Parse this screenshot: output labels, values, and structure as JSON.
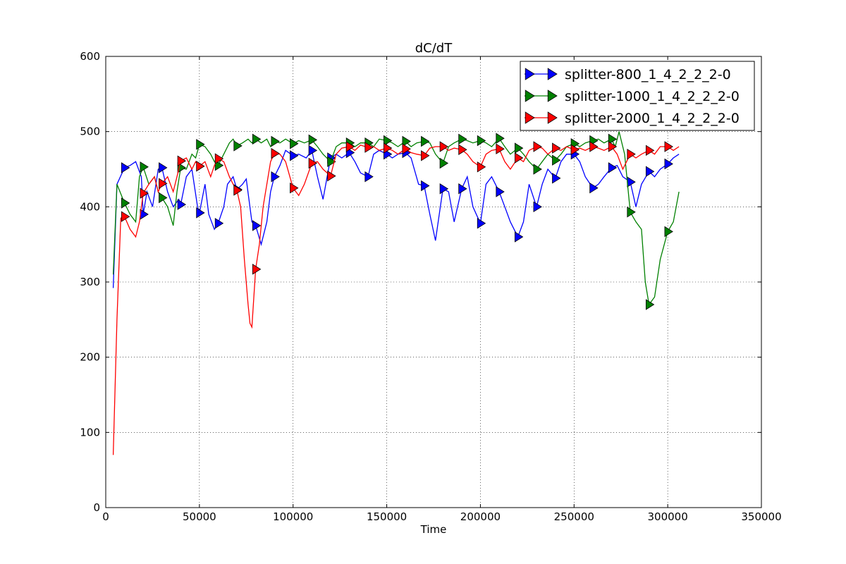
{
  "chart_data": {
    "type": "line",
    "title": "dC/dT",
    "xlabel": "Time",
    "ylabel": "",
    "xlim": [
      0,
      350000
    ],
    "ylim": [
      0,
      600
    ],
    "x_ticks": [
      "0",
      "50000",
      "100000",
      "150000",
      "200000",
      "250000",
      "300000",
      "350000"
    ],
    "y_ticks": [
      "0",
      "100",
      "200",
      "300",
      "400",
      "500",
      "600"
    ],
    "grid": true,
    "legend_position": "top-right",
    "marker": "triangle-right",
    "series": [
      {
        "name": "splitter-800_1_4_2_2_2-0",
        "color": "#0000ff",
        "x": [
          4000,
          6000,
          10000,
          13000,
          16000,
          19000,
          20000,
          22000,
          25000,
          28000,
          30000,
          33000,
          36000,
          39000,
          40000,
          43000,
          46000,
          49000,
          50000,
          53000,
          55000,
          58000,
          60000,
          63000,
          65000,
          68000,
          70000,
          73000,
          75000,
          78000,
          80000,
          83000,
          86000,
          88000,
          90000,
          93000,
          96000,
          100000,
          103000,
          107000,
          110000,
          113000,
          116000,
          120000,
          123000,
          126000,
          130000,
          133000,
          136000,
          140000,
          143000,
          146000,
          150000,
          153000,
          156000,
          160000,
          163000,
          167000,
          170000,
          173000,
          176000,
          180000,
          183000,
          186000,
          190000,
          193000,
          196000,
          200000,
          203000,
          206000,
          210000,
          213000,
          216000,
          220000,
          223000,
          226000,
          230000,
          233000,
          236000,
          240000,
          243000,
          246000,
          250000,
          253000,
          256000,
          260000,
          263000,
          266000,
          270000,
          273000,
          276000,
          280000,
          283000,
          286000,
          290000,
          293000,
          296000,
          300000,
          303000,
          306000
        ],
        "y": [
          292,
          430,
          452,
          455,
          460,
          440,
          390,
          420,
          400,
          450,
          452,
          420,
          400,
          410,
          403,
          440,
          450,
          400,
          392,
          430,
          390,
          370,
          378,
          400,
          430,
          440,
          423,
          430,
          437,
          380,
          375,
          350,
          380,
          420,
          440,
          455,
          475,
          468,
          470,
          465,
          475,
          440,
          410,
          465,
          470,
          465,
          472,
          460,
          445,
          440,
          470,
          475,
          470,
          465,
          470,
          472,
          465,
          430,
          428,
          390,
          355,
          424,
          420,
          380,
          424,
          440,
          400,
          378,
          430,
          440,
          420,
          400,
          380,
          360,
          380,
          430,
          400,
          430,
          450,
          438,
          460,
          470,
          470,
          460,
          440,
          425,
          430,
          440,
          452,
          455,
          440,
          433,
          400,
          430,
          447,
          440,
          450,
          457,
          465,
          470
        ]
      },
      {
        "name": "splitter-1000_1_4_2_2_2-0",
        "color": "#008000",
        "x": [
          4000,
          6000,
          10000,
          13000,
          16000,
          18000,
          20000,
          23000,
          26000,
          28000,
          30000,
          33000,
          36000,
          38000,
          40000,
          43000,
          46000,
          48000,
          50000,
          53000,
          56000,
          58000,
          60000,
          63000,
          66000,
          68000,
          70000,
          73000,
          76000,
          78000,
          80000,
          83000,
          86000,
          88000,
          90000,
          93000,
          96000,
          100000,
          103000,
          106000,
          110000,
          113000,
          116000,
          120000,
          123000,
          126000,
          130000,
          133000,
          136000,
          140000,
          143000,
          146000,
          150000,
          153000,
          156000,
          160000,
          163000,
          166000,
          170000,
          173000,
          176000,
          180000,
          183000,
          186000,
          190000,
          193000,
          196000,
          200000,
          203000,
          206000,
          210000,
          213000,
          216000,
          220000,
          223000,
          226000,
          230000,
          233000,
          236000,
          240000,
          243000,
          246000,
          250000,
          253000,
          256000,
          260000,
          263000,
          266000,
          270000,
          272000,
          274000,
          277000,
          280000,
          283000,
          286000,
          288000,
          290000,
          293000,
          296000,
          300000,
          303000,
          306000
        ],
        "y": [
          310,
          430,
          405,
          390,
          380,
          440,
          453,
          430,
          440,
          420,
          412,
          400,
          375,
          420,
          452,
          450,
          470,
          465,
          483,
          480,
          470,
          460,
          455,
          470,
          485,
          490,
          481,
          485,
          490,
          485,
          490,
          485,
          490,
          480,
          487,
          485,
          490,
          484,
          488,
          485,
          489,
          480,
          470,
          460,
          480,
          485,
          485,
          480,
          485,
          485,
          480,
          490,
          488,
          485,
          480,
          487,
          480,
          485,
          487,
          485,
          470,
          458,
          480,
          485,
          490,
          488,
          485,
          488,
          485,
          480,
          491,
          480,
          470,
          478,
          470,
          460,
          450,
          460,
          470,
          462,
          470,
          480,
          484,
          480,
          485,
          488,
          490,
          485,
          490,
          480,
          500,
          470,
          393,
          380,
          370,
          300,
          270,
          280,
          330,
          367,
          380,
          420
        ]
      },
      {
        "name": "splitter-2000_1_4_2_2_2-0",
        "color": "#ff0000",
        "x": [
          4000,
          6000,
          8000,
          10000,
          13000,
          16000,
          18000,
          20000,
          23000,
          26000,
          28000,
          30000,
          33000,
          36000,
          38000,
          40000,
          43000,
          46000,
          48000,
          50000,
          53000,
          56000,
          58000,
          60000,
          63000,
          66000,
          68000,
          70000,
          72000,
          74000,
          76000,
          77000,
          78000,
          80000,
          82000,
          84000,
          86000,
          88000,
          90000,
          93000,
          96000,
          100000,
          103000,
          106000,
          110000,
          113000,
          116000,
          120000,
          123000,
          126000,
          130000,
          133000,
          136000,
          140000,
          143000,
          146000,
          150000,
          153000,
          156000,
          160000,
          163000,
          166000,
          170000,
          173000,
          176000,
          180000,
          183000,
          186000,
          190000,
          193000,
          196000,
          200000,
          203000,
          206000,
          210000,
          213000,
          216000,
          220000,
          223000,
          226000,
          230000,
          233000,
          236000,
          240000,
          243000,
          246000,
          250000,
          253000,
          256000,
          260000,
          263000,
          266000,
          270000,
          273000,
          276000,
          280000,
          283000,
          286000,
          290000,
          293000,
          296000,
          300000,
          303000,
          306000
        ],
        "y": [
          70,
          250,
          385,
          387,
          370,
          360,
          380,
          418,
          430,
          440,
          420,
          431,
          440,
          420,
          440,
          461,
          465,
          450,
          460,
          454,
          460,
          440,
          455,
          464,
          460,
          440,
          430,
          422,
          400,
          330,
          270,
          245,
          240,
          317,
          350,
          400,
          430,
          460,
          471,
          470,
          460,
          425,
          415,
          430,
          458,
          460,
          450,
          441,
          470,
          478,
          480,
          475,
          482,
          479,
          480,
          475,
          478,
          475,
          470,
          477,
          472,
          470,
          468,
          478,
          480,
          480,
          475,
          478,
          476,
          470,
          460,
          453,
          470,
          475,
          477,
          460,
          450,
          465,
          460,
          475,
          480,
          478,
          470,
          478,
          475,
          480,
          476,
          478,
          475,
          480,
          478,
          475,
          480,
          470,
          450,
          470,
          465,
          470,
          475,
          470,
          480,
          480,
          475,
          480
        ]
      }
    ]
  }
}
